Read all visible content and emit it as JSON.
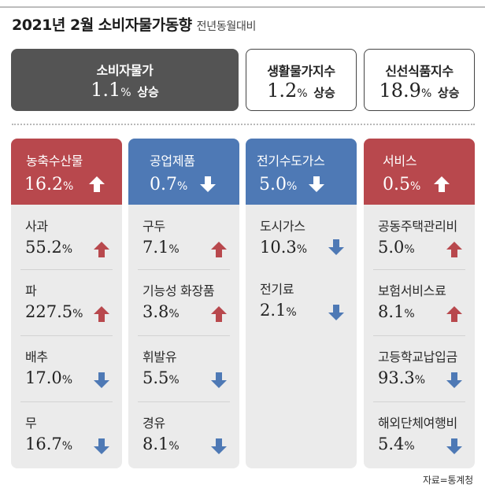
{
  "title": "2021년 2월 소비자물가동향",
  "subtitle": "전년동월대비",
  "summary": [
    {
      "label": "소비자물가",
      "value": "1.1",
      "unit": "%",
      "direction": "상승"
    },
    {
      "label": "생활물가지수",
      "value": "1.2",
      "unit": "%",
      "direction": "상승"
    },
    {
      "label": "신선식품지수",
      "value": "18.9",
      "unit": "%",
      "direction": "상승"
    }
  ],
  "categories": [
    {
      "name": "농축수산물",
      "value": "16.2",
      "unit": "%",
      "trend": "up",
      "color": "#b8484d",
      "items": [
        {
          "name": "사과",
          "value": "55.2",
          "unit": "%",
          "trend": "up"
        },
        {
          "name": "파",
          "value": "227.5",
          "unit": "%",
          "trend": "up"
        },
        {
          "name": "배추",
          "value": "17.0",
          "unit": "%",
          "trend": "down"
        },
        {
          "name": "무",
          "value": "16.7",
          "unit": "%",
          "trend": "down"
        }
      ]
    },
    {
      "name": "공업제품",
      "value": "0.7",
      "unit": "%",
      "trend": "down",
      "color": "#4e79b5",
      "items": [
        {
          "name": "구두",
          "value": "7.1",
          "unit": "%",
          "trend": "up"
        },
        {
          "name": "기능성 화장품",
          "value": "3.8",
          "unit": "%",
          "trend": "up"
        },
        {
          "name": "휘발유",
          "value": "5.5",
          "unit": "%",
          "trend": "down"
        },
        {
          "name": "경유",
          "value": "8.1",
          "unit": "%",
          "trend": "down"
        }
      ]
    },
    {
      "name": "전기수도가스",
      "value": "5.0",
      "unit": "%",
      "trend": "down",
      "color": "#4e79b5",
      "items": [
        {
          "name": "도시가스",
          "value": "10.3",
          "unit": "%",
          "trend": "down"
        },
        {
          "name": "전기료",
          "value": "2.1",
          "unit": "%",
          "trend": "down"
        }
      ]
    },
    {
      "name": "서비스",
      "value": "0.5",
      "unit": "%",
      "trend": "up",
      "color": "#b8484d",
      "items": [
        {
          "name": "공동주택관리비",
          "value": "5.0",
          "unit": "%",
          "trend": "up"
        },
        {
          "name": "보험서비스료",
          "value": "8.1",
          "unit": "%",
          "trend": "up"
        },
        {
          "name": "고등학교납입금",
          "value": "93.3",
          "unit": "%",
          "trend": "down"
        },
        {
          "name": "해외단체여행비",
          "value": "5.4",
          "unit": "%",
          "trend": "down"
        }
      ]
    }
  ],
  "colors": {
    "up": "#b8484d",
    "down": "#4e79b5",
    "dark_box": "#545454",
    "panel_bg": "#ebebeb"
  },
  "source": "자료=통계청"
}
